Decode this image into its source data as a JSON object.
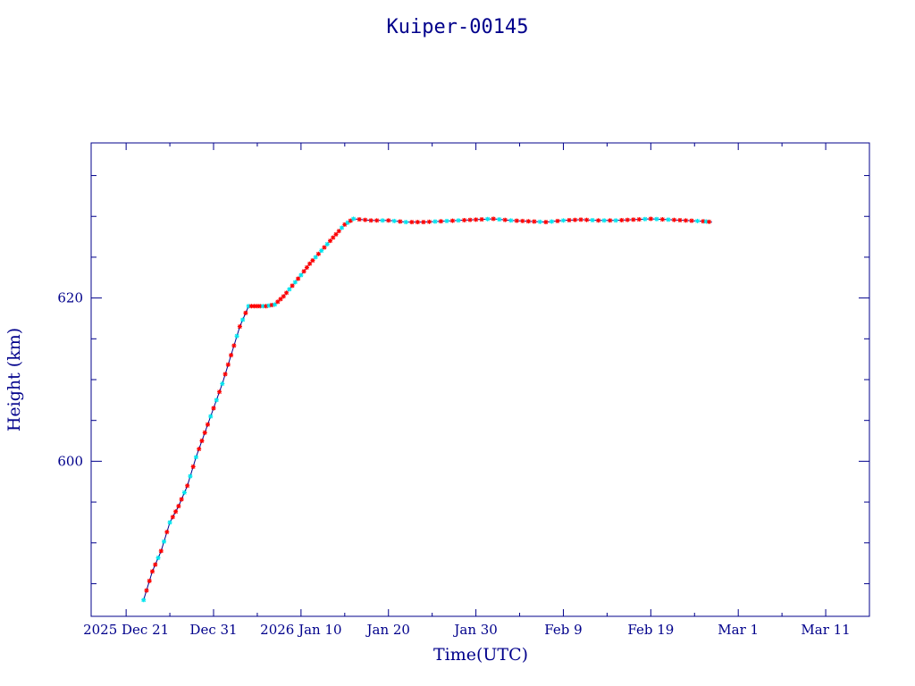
{
  "chart_data": {
    "type": "line",
    "title": "Kuiper-00145",
    "xlabel": "Time(UTC)",
    "ylabel": "Height (km)",
    "x_ticks": [
      "2025 Dec 21",
      "Dec 31",
      "2026 Jan 10",
      "Jan 20",
      "Jan 30",
      "Feb  9",
      "Feb 19",
      "Mar  1",
      "Mar 11"
    ],
    "y_ticks": [
      "600",
      "620"
    ],
    "xlim": [
      "2025-12-17",
      "2026-03-16"
    ],
    "ylim": [
      581,
      639
    ],
    "colors": {
      "axes": "#00008b",
      "line": "#00008b",
      "marker_a": "#ff0000",
      "marker_b": "#00e5ee"
    },
    "series": [
      {
        "points": [
          [
            "2025-12-23",
            583.0
          ],
          [
            "2025-12-24",
            586.5
          ],
          [
            "2025-12-25",
            589.0
          ],
          [
            "2025-12-26",
            592.5
          ],
          [
            "2025-12-27",
            594.5
          ],
          [
            "2025-12-28",
            597.0
          ],
          [
            "2025-12-29",
            600.5
          ],
          [
            "2025-12-30",
            603.5
          ],
          [
            "2025-12-31",
            606.5
          ],
          [
            "2026-01-01",
            609.5
          ],
          [
            "2026-01-02",
            613.0
          ],
          [
            "2026-01-03",
            616.5
          ],
          [
            "2026-01-04",
            619.0
          ],
          [
            "2026-01-05",
            619.0
          ],
          [
            "2026-01-06",
            619.0
          ],
          [
            "2026-01-07",
            619.2
          ],
          [
            "2026-01-08",
            620.2
          ],
          [
            "2026-01-09",
            621.5
          ],
          [
            "2026-01-10",
            622.8
          ],
          [
            "2026-01-11",
            624.2
          ],
          [
            "2026-01-12",
            625.4
          ],
          [
            "2026-01-13",
            626.6
          ],
          [
            "2026-01-14",
            627.8
          ],
          [
            "2026-01-15",
            629.0
          ],
          [
            "2026-01-16",
            629.7
          ],
          [
            "2026-01-18",
            629.5
          ],
          [
            "2026-01-20",
            629.5
          ],
          [
            "2026-01-22",
            629.3
          ],
          [
            "2026-01-24",
            629.3
          ],
          [
            "2026-01-26",
            629.4
          ],
          [
            "2026-01-28",
            629.5
          ],
          [
            "2026-01-30",
            629.6
          ],
          [
            "2026-02-01",
            629.7
          ],
          [
            "2026-02-03",
            629.5
          ],
          [
            "2026-02-05",
            629.4
          ],
          [
            "2026-02-07",
            629.3
          ],
          [
            "2026-02-09",
            629.5
          ],
          [
            "2026-02-11",
            629.6
          ],
          [
            "2026-02-13",
            629.5
          ],
          [
            "2026-02-15",
            629.5
          ],
          [
            "2026-02-17",
            629.6
          ],
          [
            "2026-02-19",
            629.7
          ],
          [
            "2026-02-21",
            629.6
          ],
          [
            "2026-02-23",
            629.5
          ],
          [
            "2026-02-25",
            629.4
          ],
          [
            "2026-02-26",
            629.3
          ]
        ]
      }
    ]
  }
}
